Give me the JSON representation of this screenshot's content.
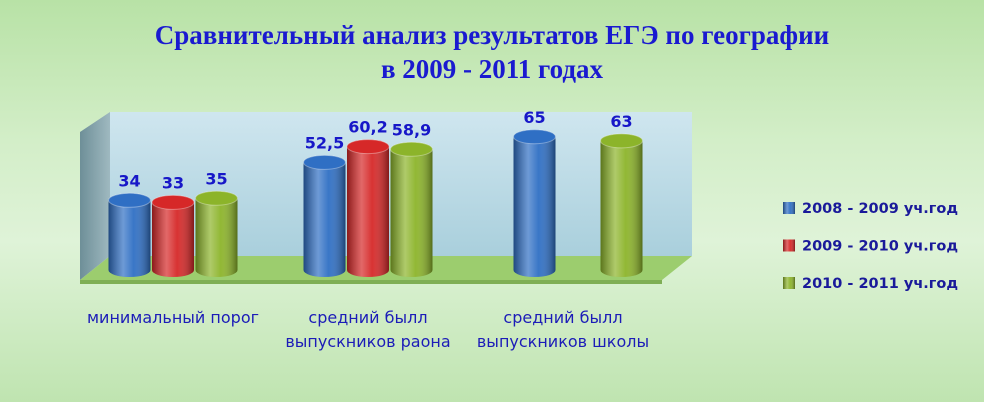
{
  "chart_data": {
    "type": "bar",
    "title": [
      "Сравнительный анализ результатов ЕГЭ  по географии",
      "в 2009 - 2011 годах"
    ],
    "categories": [
      "минимальный порог",
      "средний былл выпускников раона",
      "средний былл выпускников школы"
    ],
    "series": [
      {
        "name": "2008 - 2009 уч.год",
        "color": "#2f6fc4",
        "values": [
          34,
          52.5,
          65
        ],
        "value_labels": [
          "34",
          "52,5",
          "65"
        ]
      },
      {
        "name": "2009 - 2010 уч.год",
        "color": "#d62828",
        "values": [
          33,
          60.2,
          null
        ],
        "value_labels": [
          "33",
          "60,2",
          null
        ]
      },
      {
        "name": "2010 - 2011 уч.год",
        "color": "#8cb42a",
        "values": [
          35,
          58.9,
          63
        ],
        "value_labels": [
          "35",
          "58,9",
          "63"
        ]
      }
    ],
    "legend": "right"
  }
}
